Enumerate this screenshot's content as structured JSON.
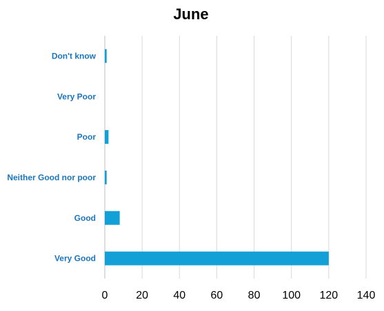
{
  "chart_data": {
    "type": "bar",
    "orientation": "horizontal",
    "title": "June",
    "xlabel": "",
    "ylabel": "",
    "categories": [
      "Don't know",
      "Very Poor",
      "Poor",
      "Neither Good nor poor",
      "Good",
      "Very Good"
    ],
    "values": [
      1,
      0,
      2,
      1,
      8,
      120
    ],
    "xlim": [
      0,
      140
    ],
    "xticks": [
      "0",
      "20",
      "40",
      "60",
      "80",
      "100",
      "120",
      "140"
    ],
    "grid": "vertical",
    "legend": "none",
    "colors": {
      "bar": "#12A0D7",
      "category_label": "#1B75BC",
      "grid": "#D9D9D9",
      "axis": "#BFBFBF"
    }
  }
}
